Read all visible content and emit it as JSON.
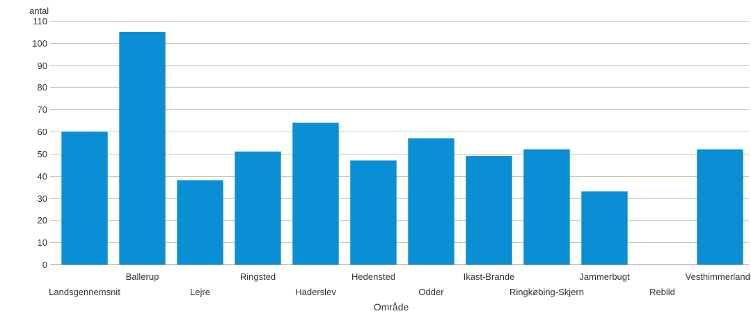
{
  "chart_data": {
    "type": "bar",
    "categories": [
      "Landsgennemsnit",
      "Ballerup",
      "Lejre",
      "Ringsted",
      "Haderslev",
      "Hedensted",
      "Odder",
      "Ikast-Brande",
      "Ringkøbing-Skjern",
      "Jammerbugt",
      "Rebild",
      "Vesthimmerlands"
    ],
    "values": [
      60,
      105,
      38,
      51,
      64,
      47,
      57,
      49,
      52,
      33,
      null,
      52
    ],
    "ylabel": "antal",
    "xlabel": "Område",
    "ylim": [
      0,
      110
    ],
    "yticks": [
      0,
      10,
      20,
      30,
      40,
      50,
      60,
      70,
      80,
      90,
      100,
      110
    ],
    "grid": true,
    "bar_color": "#0a8fd4",
    "grid_color": "#c9c9a8",
    "axis_color": "#999999",
    "text_color": "#333333"
  }
}
